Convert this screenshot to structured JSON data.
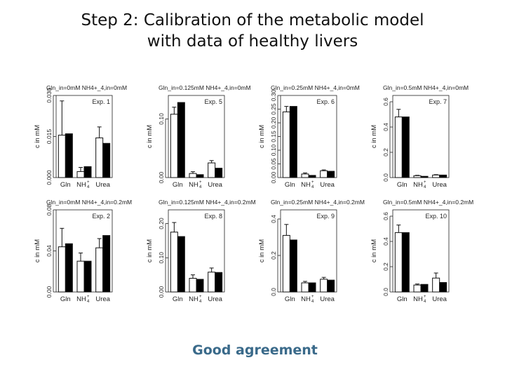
{
  "title_line1": "Step 2: Calibration of the metabolic model",
  "title_line2": "with data of healthy livers",
  "footer": "Good agreement",
  "colors": {
    "measured": "#ffffff",
    "model": "#000000",
    "text_accent": "#3a6a8a"
  },
  "chart_data": [
    {
      "type": "bar",
      "header": "Gln_in=0mM  NH4+_4,in=0mM",
      "exp": "Exp. 1",
      "categories": [
        "Gln",
        "NH4+",
        "Urea"
      ],
      "ylabel": "c in mM",
      "ylim": [
        0,
        0.03
      ],
      "yticks": [
        0.0,
        0.015,
        0.03
      ],
      "ytick_labels": [
        "0.000",
        "0.015",
        "0.030"
      ],
      "series": [
        {
          "values": [
            0.0155,
            0.0022,
            0.0145
          ],
          "error": [
            0.0125,
            0.0015,
            0.004
          ]
        },
        {
          "values": [
            0.016,
            0.004,
            0.0125
          ],
          "error": [
            0,
            0,
            0
          ]
        }
      ]
    },
    {
      "type": "bar",
      "header": "Gln_in=0.125mM  NH4+_4,in=0mM",
      "exp": "Exp. 5",
      "categories": [
        "Gln",
        "NH4+",
        "Urea"
      ],
      "ylabel": "c in mM",
      "ylim": [
        0,
        0.14
      ],
      "yticks": [
        0.0,
        0.1
      ],
      "ytick_labels": [
        "0.00",
        "0.10"
      ],
      "series": [
        {
          "values": [
            0.108,
            0.007,
            0.025
          ],
          "error": [
            0.012,
            0.003,
            0.004
          ]
        },
        {
          "values": [
            0.128,
            0.005,
            0.016
          ],
          "error": [
            0,
            0,
            0
          ]
        }
      ]
    },
    {
      "type": "bar",
      "header": "Gln_in=0.25mM  NH4+_4,in=0mM",
      "exp": "Exp. 6",
      "categories": [
        "Gln",
        "NH4+",
        "Urea"
      ],
      "ylabel": "c in mM",
      "ylim": [
        0,
        0.3
      ],
      "yticks": [
        0.0,
        0.05,
        0.1,
        0.15,
        0.2,
        0.25,
        0.3
      ],
      "ytick_labels": [
        "0.00",
        "0.05",
        "0.10",
        "0.15",
        "0.20",
        "0.25",
        "0.30"
      ],
      "series": [
        {
          "values": [
            0.24,
            0.013,
            0.025
          ],
          "error": [
            0.02,
            0.004,
            0.003
          ]
        },
        {
          "values": [
            0.26,
            0.008,
            0.023
          ],
          "error": [
            0,
            0,
            0
          ]
        }
      ]
    },
    {
      "type": "bar",
      "header": "Gln_in=0.5mM  NH4+_4,in=0mM",
      "exp": "Exp. 7",
      "categories": [
        "Gln",
        "NH4+",
        "Urea"
      ],
      "ylabel": "c in mM",
      "ylim": [
        0,
        0.65
      ],
      "yticks": [
        0.0,
        0.2,
        0.4,
        0.6
      ],
      "ytick_labels": [
        "0.0",
        "0.2",
        "0.4",
        "0.6"
      ],
      "series": [
        {
          "values": [
            0.48,
            0.015,
            0.02
          ],
          "error": [
            0.06,
            0.003,
            0.003
          ]
        },
        {
          "values": [
            0.48,
            0.01,
            0.02
          ],
          "error": [
            0,
            0,
            0
          ]
        }
      ]
    },
    {
      "type": "bar",
      "header": "Gln_in=0mM  NH4+_4,in=0.2mM",
      "exp": "Exp. 2",
      "categories": [
        "Gln",
        "NH4+",
        "Urea"
      ],
      "ylabel": "c in mM",
      "ylim": [
        0,
        0.08
      ],
      "yticks": [
        0.0,
        0.04,
        0.08
      ],
      "ytick_labels": [
        "0.00",
        "0.04",
        "0.08"
      ],
      "series": [
        {
          "values": [
            0.044,
            0.03,
            0.043
          ],
          "error": [
            0.018,
            0.008,
            0.009
          ]
        },
        {
          "values": [
            0.047,
            0.03,
            0.055
          ],
          "error": [
            0,
            0,
            0
          ]
        }
      ]
    },
    {
      "type": "bar",
      "header": "Gln_in=0.125mM  NH4+_4,in=0.2mM",
      "exp": "Exp. 8",
      "categories": [
        "Gln",
        "NH4+",
        "Urea"
      ],
      "ylabel": "c in mM",
      "ylim": [
        0,
        0.24
      ],
      "yticks": [
        0.0,
        0.1,
        0.2
      ],
      "ytick_labels": [
        "0.00",
        "0.10",
        "0.20"
      ],
      "series": [
        {
          "values": [
            0.175,
            0.04,
            0.058
          ],
          "error": [
            0.028,
            0.01,
            0.012
          ]
        },
        {
          "values": [
            0.162,
            0.037,
            0.057
          ],
          "error": [
            0,
            0,
            0
          ]
        }
      ]
    },
    {
      "type": "bar",
      "header": "Gln_in=0.25mM  NH4+_4,in=0.2mM",
      "exp": "Exp. 9",
      "categories": [
        "Gln",
        "NH4+",
        "Urea"
      ],
      "ylabel": "c in mM",
      "ylim": [
        0,
        0.45
      ],
      "yticks": [
        0.0,
        0.2,
        0.4
      ],
      "ytick_labels": [
        "0.0",
        "0.2",
        "0.4"
      ],
      "series": [
        {
          "values": [
            0.31,
            0.05,
            0.07
          ],
          "error": [
            0.06,
            0.008,
            0.01
          ]
        },
        {
          "values": [
            0.285,
            0.05,
            0.065
          ],
          "error": [
            0,
            0,
            0
          ]
        }
      ]
    },
    {
      "type": "bar",
      "header": "Gln_in=0.5mM  NH4+_4,in=0.2mM",
      "exp": "Exp. 10",
      "categories": [
        "Gln",
        "NH4+",
        "Urea"
      ],
      "ylabel": "c in mM",
      "ylim": [
        0,
        0.65
      ],
      "yticks": [
        0.0,
        0.2,
        0.4,
        0.6
      ],
      "ytick_labels": [
        "0.0",
        "0.2",
        "0.4",
        "0.6"
      ],
      "series": [
        {
          "values": [
            0.47,
            0.055,
            0.11
          ],
          "error": [
            0.06,
            0.008,
            0.04
          ]
        },
        {
          "values": [
            0.47,
            0.06,
            0.075
          ],
          "error": [
            0,
            0,
            0
          ]
        }
      ]
    }
  ]
}
